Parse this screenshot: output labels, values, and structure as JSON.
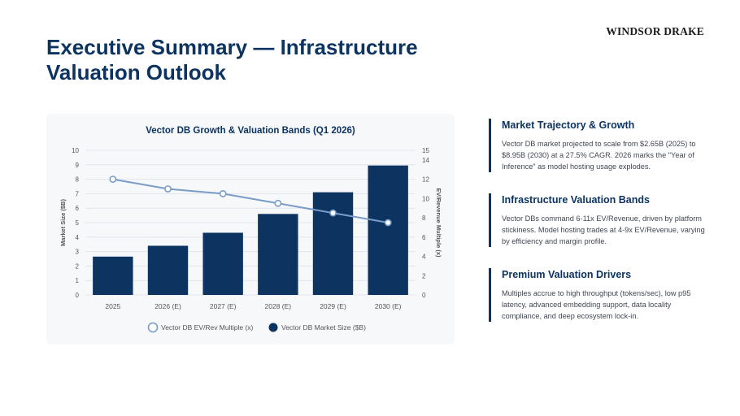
{
  "brand": "WINDSOR DRAKE",
  "title": "Executive Summary — Infrastructure Valuation Outlook",
  "sections": [
    {
      "heading": "Market Trajectory & Growth",
      "body": "Vector DB market projected to scale from $2.65B (2025) to $8.95B (2030) at a 27.5% CAGR. 2026 marks the \"Year of Inference\" as model hosting usage explodes."
    },
    {
      "heading": "Infrastructure Valuation Bands",
      "body": "Vector DBs command 6-11x EV/Revenue, driven by platform stickiness. Model hosting trades at 4-9x EV/Revenue, varying by efficiency and margin profile."
    },
    {
      "heading": "Premium Valuation Drivers",
      "body": "Multiples accrue to high throughput (tokens/sec), low p95 latency, advanced embedding support, data locality compliance, and deep ecosystem lock-in."
    }
  ],
  "colors": {
    "bar": "#0d3461",
    "line": "#7a9cc6",
    "grid": "#e1e6ec"
  },
  "chart_data": {
    "type": "bar",
    "title": "Vector DB Growth & Valuation Bands (Q1 2026)",
    "categories": [
      "2025",
      "2026 (E)",
      "2027 (E)",
      "2028 (E)",
      "2029 (E)",
      "2030 (E)"
    ],
    "ylabel": "Market Size ($B)",
    "y2label": "EV/Revenue Multiple (x)",
    "ylim": [
      0,
      10
    ],
    "y2lim": [
      0,
      15
    ],
    "yticks": [
      "0",
      "1",
      "2",
      "3",
      "4",
      "5",
      "6",
      "7",
      "8",
      "9",
      "10"
    ],
    "y2ticks": [
      "0",
      "2",
      "4",
      "6",
      "8",
      "10",
      "12",
      "14",
      "15"
    ],
    "series": [
      {
        "name": "Vector DB Market Size ($B)",
        "kind": "bar",
        "axis": "left",
        "values": [
          2.65,
          3.4,
          4.3,
          5.6,
          7.1,
          8.95
        ]
      },
      {
        "name": "Vector DB EV/Rev Multiple (x)",
        "kind": "line",
        "axis": "right",
        "values": [
          12.0,
          11.0,
          10.5,
          9.5,
          8.5,
          7.5
        ]
      }
    ],
    "legend_position": "bottom",
    "grid": true
  }
}
